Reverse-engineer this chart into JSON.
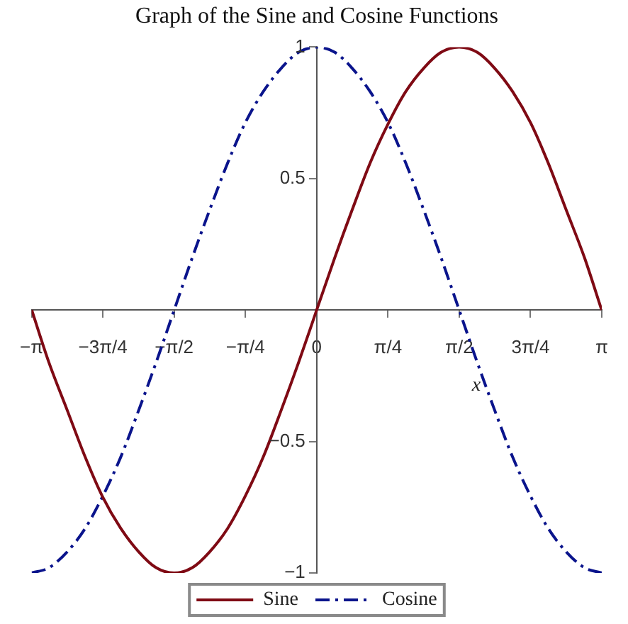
{
  "chart_data": {
    "type": "line",
    "title": "Graph of the Sine and Cosine Functions",
    "xlabel": "x",
    "x": [
      -3.14,
      -2.95,
      -2.75,
      -2.55,
      -2.36,
      -2.16,
      -1.96,
      -1.77,
      -1.57,
      -1.37,
      -1.18,
      -0.98,
      -0.79,
      -0.59,
      -0.39,
      -0.2,
      0,
      0.2,
      0.39,
      0.59,
      0.79,
      0.98,
      1.18,
      1.37,
      1.57,
      1.77,
      1.96,
      2.16,
      2.36,
      2.55,
      2.75,
      2.95,
      3.14
    ],
    "series": [
      {
        "name": "Sine",
        "color": "#7f0a14",
        "line_style": "solid",
        "values": [
          0,
          -0.2,
          -0.38,
          -0.56,
          -0.71,
          -0.83,
          -0.92,
          -0.98,
          -1,
          -0.98,
          -0.92,
          -0.83,
          -0.71,
          -0.56,
          -0.38,
          -0.2,
          0,
          0.2,
          0.38,
          0.56,
          0.71,
          0.83,
          0.92,
          0.98,
          1,
          0.98,
          0.92,
          0.83,
          0.71,
          0.56,
          0.38,
          0.2,
          0
        ]
      },
      {
        "name": "Cosine",
        "color": "#0a148c",
        "line_style": "dashed",
        "values": [
          -1,
          -0.98,
          -0.92,
          -0.83,
          -0.71,
          -0.56,
          -0.38,
          -0.2,
          0,
          0.2,
          0.38,
          0.56,
          0.71,
          0.83,
          0.92,
          0.98,
          1,
          0.98,
          0.92,
          0.83,
          0.71,
          0.56,
          0.38,
          0.2,
          0,
          -0.2,
          -0.38,
          -0.56,
          -0.71,
          -0.83,
          -0.92,
          -0.98,
          -1
        ]
      }
    ],
    "xlim": [
      -3.14159,
      3.14159
    ],
    "xticks": [
      {
        "value": -3.14159,
        "label": "−π"
      },
      {
        "value": -2.35619,
        "label": "−3π/4"
      },
      {
        "value": -1.5708,
        "label": "−π/2"
      },
      {
        "value": -0.7854,
        "label": "−π/4"
      },
      {
        "value": 0,
        "label": "0"
      },
      {
        "value": 0.7854,
        "label": "π/4"
      },
      {
        "value": 1.5708,
        "label": "π/2"
      },
      {
        "value": 2.35619,
        "label": "3π/4"
      },
      {
        "value": 3.14159,
        "label": "π"
      }
    ],
    "ylim": [
      -1,
      1
    ],
    "yticks": [
      {
        "value": -1,
        "label": "−1"
      },
      {
        "value": -0.5,
        "label": "−0.5"
      },
      0.5,
      1
    ],
    "legend": "bottom"
  }
}
